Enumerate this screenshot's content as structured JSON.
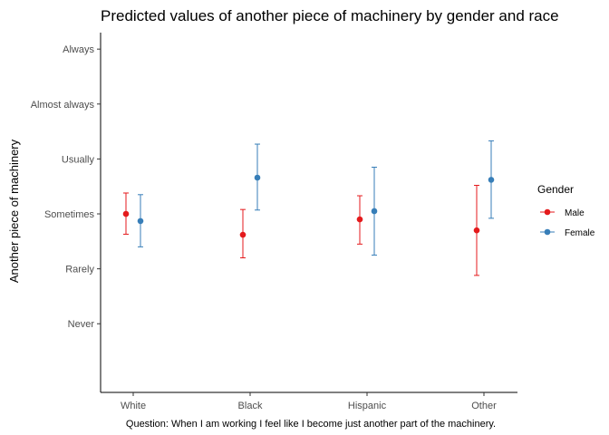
{
  "chart_data": {
    "type": "scatter",
    "title": "Predicted values of another piece of machinery by gender and race",
    "xlabel": "Question: When I am working I feel like I become just another part of the machinery.",
    "ylabel": "Another piece of machinery",
    "categories": [
      "White",
      "Black",
      "Hispanic",
      "Other"
    ],
    "y_ticks": [
      {
        "value": 1,
        "label": "Never"
      },
      {
        "value": 2,
        "label": "Rarely"
      },
      {
        "value": 3,
        "label": "Sometimes"
      },
      {
        "value": 4,
        "label": "Usually"
      },
      {
        "value": 5,
        "label": "Almost always"
      },
      {
        "value": 6,
        "label": "Always"
      }
    ],
    "ylim": [
      -0.25,
      6.3
    ],
    "grid": false,
    "legend": {
      "title": "Gender",
      "position": "right"
    },
    "series": [
      {
        "name": "Male",
        "color": "#e41a1c",
        "values": [
          3.0,
          2.62,
          2.9,
          2.7
        ],
        "lower": [
          2.63,
          2.2,
          2.45,
          1.88
        ],
        "upper": [
          3.38,
          3.08,
          3.33,
          3.52
        ]
      },
      {
        "name": "Female",
        "color": "#377eb8",
        "values": [
          2.87,
          3.66,
          3.05,
          3.62
        ],
        "lower": [
          2.4,
          3.07,
          2.25,
          2.92
        ],
        "upper": [
          3.35,
          4.27,
          3.85,
          4.33
        ]
      }
    ]
  }
}
